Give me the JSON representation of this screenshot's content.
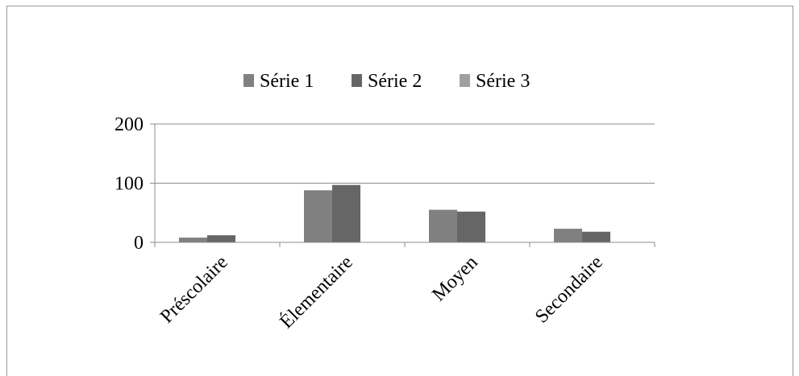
{
  "chart_data": {
    "type": "bar",
    "categories": [
      "Préscolaire",
      "Élementaire",
      "Moyen",
      "Secondaire"
    ],
    "series": [
      {
        "name": "Série 1",
        "values": [
          8,
          88,
          55,
          23
        ],
        "color": "#808080"
      },
      {
        "name": "Série 2",
        "values": [
          12,
          97,
          52,
          18
        ],
        "color": "#666666"
      },
      {
        "name": "Série 3",
        "values": [
          0,
          0,
          0,
          0
        ],
        "color": "#a0a0a0"
      }
    ],
    "yticks": [
      0,
      100,
      200
    ],
    "ylim": [
      0,
      200
    ],
    "grid": true,
    "legend": "top"
  }
}
